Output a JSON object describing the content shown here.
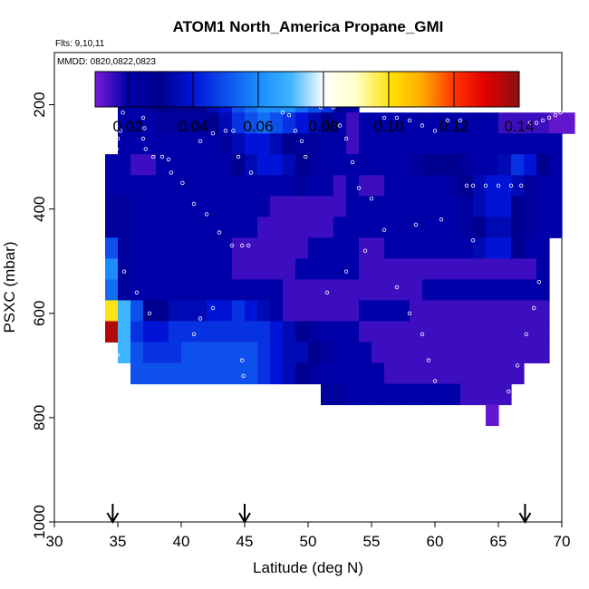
{
  "chart_data": {
    "type": "heatmap",
    "title": "ATOM1 North_America Propane_GMI",
    "annotations": {
      "flights": "Flts: 9,10,11",
      "dates": "MMDD: 0820,0822,0823"
    },
    "xlabel": "Latitude (deg N)",
    "ylabel": "PSXC (mbar)",
    "xlim": [
      30,
      70
    ],
    "ylim": [
      1000,
      100
    ],
    "x_ticks": [
      "30",
      "35",
      "40",
      "45",
      "50",
      "55",
      "60",
      "65",
      "70"
    ],
    "y_ticks": [
      "200",
      "400",
      "600",
      "800",
      "1000"
    ],
    "y_tick_values": [
      200,
      400,
      600,
      800,
      1000
    ],
    "colorbar": {
      "range": [
        0.01,
        0.14
      ],
      "tick_labels": [
        "0.02",
        "0.04",
        "0.06",
        "0.08",
        "0.10",
        "0.12",
        "0.14"
      ],
      "tick_values": [
        0.02,
        0.04,
        0.06,
        0.08,
        0.1,
        0.12,
        0.14
      ]
    },
    "arrow_latitudes": [
      34.6,
      45.0,
      67.1
    ],
    "grid": {
      "lat_start": 34.0,
      "lat_step": 1.0,
      "p_start": 175,
      "p_step": 40,
      "rows": [
        {
          "lat_from": 35.0,
          "values": [
            0.02,
            0.02,
            0.025,
            0.03,
            0.03,
            0.03,
            0.03,
            0.035,
            0.04,
            0.05,
            0.055,
            0.06,
            0.06,
            0.06,
            0.055,
            0.05,
            0.045,
            0.03,
            0.02
          ]
        },
        {
          "lat_from": 35.0,
          "values": [
            0.02,
            0.02,
            0.02,
            0.025,
            0.025,
            0.025,
            0.025,
            0.03,
            0.035,
            0.045,
            0.05,
            0.055,
            0.05,
            0.045,
            0.04,
            0.035,
            0.03,
            0.02,
            0.015,
            0.02,
            0.02,
            0.02,
            0.02,
            0.02,
            0.02,
            0.02,
            0.02,
            0.02,
            0.02,
            0.02,
            0.015,
            0.015,
            0.015,
            0.015,
            0.012,
            0.012
          ]
        },
        {
          "lat_from": 35.0,
          "values": [
            0.02,
            0.02,
            0.02,
            0.02,
            0.02,
            0.02,
            0.02,
            0.02,
            0.025,
            0.035,
            0.04,
            0.04,
            0.035,
            0.03,
            0.025,
            0.025,
            0.02,
            0.02,
            0.015,
            0.02,
            0.02,
            0.02,
            0.02,
            0.02,
            0.02,
            0.02,
            0.02,
            0.02,
            0.02,
            0.02,
            0.02,
            0.02,
            0.02,
            0.02,
            0.02
          ]
        },
        {
          "lat_from": 34.0,
          "values": [
            0.02,
            0.02,
            0.015,
            0.015,
            0.02,
            0.02,
            0.02,
            0.02,
            0.02,
            0.02,
            0.03,
            0.035,
            0.04,
            0.04,
            0.035,
            0.03,
            0.025,
            0.02,
            0.02,
            0.02,
            0.02,
            0.02,
            0.02,
            0.02,
            0.025,
            0.03,
            0.03,
            0.03,
            0.025,
            0.02,
            0.02,
            0.035,
            0.045,
            0.04,
            0.03,
            0.02
          ]
        },
        {
          "lat_from": 34.0,
          "values": [
            0.02,
            0.02,
            0.02,
            0.02,
            0.02,
            0.02,
            0.02,
            0.02,
            0.02,
            0.02,
            0.02,
            0.02,
            0.02,
            0.02,
            0.02,
            0.025,
            0.02,
            0.02,
            0.015,
            0.02,
            0.015,
            0.015,
            0.02,
            0.02,
            0.02,
            0.02,
            0.02,
            0.025,
            0.03,
            0.035,
            0.04,
            0.04,
            0.035,
            0.025,
            0.02,
            0.02
          ]
        },
        {
          "lat_from": 34.0,
          "values": [
            0.025,
            0.025,
            0.02,
            0.02,
            0.02,
            0.02,
            0.02,
            0.02,
            0.02,
            0.02,
            0.02,
            0.02,
            0.02,
            0.015,
            0.015,
            0.015,
            0.015,
            0.015,
            0.015,
            0.02,
            0.02,
            0.02,
            0.02,
            0.02,
            0.02,
            0.02,
            0.02,
            0.02,
            0.025,
            0.035,
            0.04,
            0.04,
            0.03,
            0.025,
            0.02,
            0.02
          ]
        },
        {
          "lat_from": 34.0,
          "values": [
            0.025,
            0.025,
            0.02,
            0.02,
            0.02,
            0.02,
            0.02,
            0.02,
            0.02,
            0.02,
            0.02,
            0.02,
            0.015,
            0.015,
            0.015,
            0.015,
            0.015,
            0.015,
            0.02,
            0.02,
            0.02,
            0.02,
            0.02,
            0.02,
            0.02,
            0.02,
            0.02,
            0.02,
            0.025,
            0.03,
            0.035,
            0.035,
            0.03,
            0.025,
            0.02,
            0.02
          ]
        },
        {
          "lat_from": 34.0,
          "values": [
            0.05,
            0.025,
            0.02,
            0.02,
            0.02,
            0.02,
            0.02,
            0.02,
            0.02,
            0.02,
            0.015,
            0.015,
            0.015,
            0.015,
            0.015,
            0.015,
            0.02,
            0.02,
            0.02,
            0.02,
            0.015,
            0.015,
            0.02,
            0.02,
            0.02,
            0.02,
            0.02,
            0.02,
            0.02,
            0.035,
            0.04,
            0.04,
            0.03,
            0.02,
            0.02
          ]
        },
        {
          "lat_from": 34.0,
          "values": [
            0.06,
            0.025,
            0.02,
            0.02,
            0.02,
            0.02,
            0.02,
            0.02,
            0.02,
            0.02,
            0.015,
            0.015,
            0.015,
            0.015,
            0.015,
            0.02,
            0.02,
            0.02,
            0.02,
            0.02,
            0.015,
            0.015,
            0.015,
            0.015,
            0.015,
            0.015,
            0.015,
            0.015,
            0.015,
            0.015,
            0.015,
            0.015,
            0.015,
            0.015,
            0.02
          ]
        },
        {
          "lat_from": 34.0,
          "values": [
            0.055,
            0.025,
            0.02,
            0.02,
            0.02,
            0.02,
            0.02,
            0.02,
            0.02,
            0.02,
            0.02,
            0.02,
            0.02,
            0.02,
            0.015,
            0.015,
            0.015,
            0.015,
            0.015,
            0.015,
            0.015,
            0.015,
            0.015,
            0.015,
            0.015,
            0.02,
            0.02,
            0.02,
            0.02,
            0.02,
            0.02,
            0.02,
            0.02,
            0.02,
            0.02
          ]
        },
        {
          "lat_from": 34.0,
          "values": [
            0.1,
            0.07,
            0.05,
            0.03,
            0.03,
            0.035,
            0.035,
            0.035,
            0.04,
            0.04,
            0.045,
            0.04,
            0.035,
            0.02,
            0.015,
            0.015,
            0.015,
            0.015,
            0.015,
            0.015,
            0.02,
            0.02,
            0.02,
            0.02,
            0.015,
            0.015,
            0.015,
            0.015,
            0.015,
            0.015,
            0.015,
            0.015,
            0.015,
            0.015,
            0.015
          ]
        },
        {
          "lat_from": 34.0,
          "values": [
            0.135,
            0.07,
            0.045,
            0.04,
            0.04,
            0.045,
            0.045,
            0.045,
            0.045,
            0.045,
            0.045,
            0.045,
            0.045,
            0.04,
            0.035,
            0.03,
            0.025,
            0.02,
            0.02,
            0.02,
            0.015,
            0.015,
            0.015,
            0.015,
            0.015,
            0.015,
            0.015,
            0.015,
            0.015,
            0.015,
            0.015,
            0.015,
            0.015,
            0.015,
            0.015
          ]
        },
        {
          "lat_from": 35.0,
          "values": [
            0.07,
            0.05,
            0.045,
            0.045,
            0.045,
            0.05,
            0.05,
            0.05,
            0.05,
            0.05,
            0.05,
            0.045,
            0.04,
            0.035,
            0.035,
            0.03,
            0.025,
            0.02,
            0.02,
            0.02,
            0.015,
            0.015,
            0.015,
            0.015,
            0.015,
            0.015,
            0.015,
            0.015,
            0.015,
            0.015,
            0.015,
            0.015,
            0.015,
            0.015
          ]
        },
        {
          "lat_from": 36.0,
          "values": [
            0.05,
            0.05,
            0.05,
            0.05,
            0.05,
            0.05,
            0.05,
            0.05,
            0.05,
            0.05,
            0.045,
            0.04,
            0.035,
            0.03,
            0.025,
            0.02,
            0.02,
            0.02,
            0.02,
            0.02,
            0.015,
            0.015,
            0.015,
            0.015,
            0.015,
            0.015,
            0.015,
            0.015,
            0.015,
            0.015,
            0.015
          ]
        },
        {
          "lat_from": 51.0,
          "values": [
            0.025,
            0.025,
            0.02,
            0.02,
            0.02,
            0.02,
            0.02,
            0.02,
            0.02,
            0.02,
            0.02,
            0.015,
            0.015,
            0.015,
            0.015
          ]
        },
        {
          "lat_from": 64.0,
          "values": [
            0.012
          ]
        }
      ]
    }
  }
}
